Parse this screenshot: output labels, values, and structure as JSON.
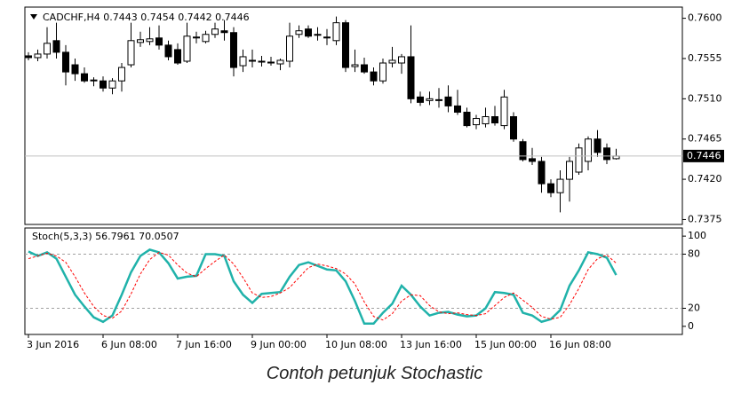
{
  "chart_data": [
    {
      "type": "candlestick",
      "title": "CADCHF,H4  0.7443 0.7454 0.7442 0.7446",
      "categories": [
        "3 Jun 2016",
        null,
        null,
        null,
        null,
        null,
        null,
        null,
        "6 Jun 08:00",
        null,
        null,
        null,
        null,
        null,
        null,
        null,
        "7 Jun 16:00",
        null,
        null,
        null,
        null,
        null,
        null,
        null,
        "9 Jun 00:00",
        null,
        null,
        null,
        null,
        null,
        null,
        null,
        "10 Jun 08:00",
        null,
        null,
        null,
        null,
        null,
        null,
        null,
        "13 Jun 16:00",
        null,
        null,
        null,
        null,
        null,
        null,
        null,
        "15 Jun 00:00",
        null,
        null,
        null,
        null,
        null,
        null,
        null,
        "16 Jun 08:00",
        null,
        null,
        null,
        null,
        null,
        null,
        null
      ],
      "open": [
        0.7558,
        0.7556,
        0.756,
        0.7575,
        0.7562,
        0.7548,
        0.7538,
        0.753,
        0.753,
        0.7522,
        0.753,
        0.7548,
        0.7573,
        0.7574,
        0.7578,
        0.757,
        0.7565,
        0.7552,
        0.7578,
        0.7574,
        0.7582,
        0.7586,
        0.7584,
        0.7547,
        0.7553,
        0.7552,
        0.7551,
        0.7549,
        0.7552,
        0.7582,
        0.7588,
        0.7582,
        0.7579,
        0.7575,
        0.7595,
        0.7546,
        0.7548,
        0.754,
        0.753,
        0.755,
        0.755,
        0.7557,
        0.7512,
        0.7508,
        0.7509,
        0.7512,
        0.7502,
        0.7495,
        0.7481,
        0.7482,
        0.749,
        0.748,
        0.749,
        0.7462,
        0.7443,
        0.744,
        0.7415,
        0.7405,
        0.742,
        0.7428,
        0.744,
        0.7465,
        0.7455,
        0.7443
      ],
      "high": [
        0.7562,
        0.7565,
        0.759,
        0.7595,
        0.757,
        0.7555,
        0.7545,
        0.7534,
        0.7535,
        0.7533,
        0.755,
        0.7595,
        0.7585,
        0.759,
        0.7592,
        0.7575,
        0.7572,
        0.7595,
        0.7585,
        0.7586,
        0.7595,
        0.7598,
        0.759,
        0.7565,
        0.7565,
        0.7558,
        0.7557,
        0.7555,
        0.7595,
        0.7592,
        0.7592,
        0.759,
        0.7588,
        0.7602,
        0.7598,
        0.7565,
        0.7556,
        0.7545,
        0.7555,
        0.7568,
        0.756,
        0.7592,
        0.7518,
        0.7518,
        0.7522,
        0.7525,
        0.752,
        0.75,
        0.7492,
        0.75,
        0.7502,
        0.752,
        0.7495,
        0.7465,
        0.7455,
        0.7445,
        0.742,
        0.743,
        0.7445,
        0.746,
        0.7468,
        0.7475,
        0.746,
        0.7454
      ],
      "low": [
        0.7553,
        0.7552,
        0.7555,
        0.7555,
        0.7525,
        0.753,
        0.7528,
        0.7524,
        0.7518,
        0.7515,
        0.7518,
        0.7545,
        0.7568,
        0.757,
        0.7565,
        0.7553,
        0.7548,
        0.755,
        0.7572,
        0.7572,
        0.7578,
        0.7575,
        0.7535,
        0.754,
        0.7545,
        0.7546,
        0.7547,
        0.7542,
        0.7545,
        0.7578,
        0.7578,
        0.7575,
        0.757,
        0.757,
        0.754,
        0.754,
        0.7538,
        0.7525,
        0.7527,
        0.7545,
        0.7538,
        0.7505,
        0.7502,
        0.7503,
        0.75,
        0.7495,
        0.7492,
        0.7478,
        0.7476,
        0.7478,
        0.748,
        0.7476,
        0.7462,
        0.744,
        0.7436,
        0.7405,
        0.74,
        0.7383,
        0.7395,
        0.7425,
        0.743,
        0.7445,
        0.7437,
        0.7442
      ],
      "close": [
        0.7556,
        0.756,
        0.7572,
        0.7562,
        0.754,
        0.7538,
        0.753,
        0.7531,
        0.7522,
        0.753,
        0.7545,
        0.7575,
        0.7576,
        0.7577,
        0.757,
        0.7557,
        0.755,
        0.758,
        0.7579,
        0.7582,
        0.7588,
        0.7584,
        0.7545,
        0.7557,
        0.7552,
        0.7551,
        0.755,
        0.7553,
        0.758,
        0.7586,
        0.758,
        0.7581,
        0.7578,
        0.7595,
        0.7545,
        0.7548,
        0.754,
        0.753,
        0.755,
        0.7553,
        0.7557,
        0.751,
        0.7506,
        0.751,
        0.7508,
        0.7502,
        0.7495,
        0.748,
        0.7488,
        0.749,
        0.7483,
        0.7512,
        0.7465,
        0.7442,
        0.744,
        0.7415,
        0.7405,
        0.742,
        0.744,
        0.7455,
        0.7465,
        0.745,
        0.7442,
        0.7446
      ],
      "up_color": "#ffffff",
      "down_color": "#000000",
      "current_price": 0.7446,
      "ylim": [
        0.73695,
        0.76125
      ],
      "yticks": [
        {
          "value": 0.76,
          "label": "0.7600"
        },
        0.7555,
        {
          "value": 0.751,
          "label": "0.7510"
        },
        0.7465,
        {
          "value": 0.742,
          "label": "0.7420"
        },
        0.7375
      ]
    },
    {
      "type": "line",
      "title": "Stoch(5,3,3) 56.7961 70.0507",
      "series": [
        {
          "color": "#20b2aa",
          "dash": false,
          "values": [
            83,
            78,
            82,
            75,
            55,
            35,
            22,
            10,
            5,
            12,
            35,
            60,
            78,
            85,
            82,
            70,
            53,
            55,
            56,
            80,
            80,
            78,
            50,
            35,
            26,
            36,
            37,
            38,
            55,
            68,
            71,
            67,
            63,
            62,
            50,
            28,
            3,
            3,
            15,
            25,
            45,
            35,
            22,
            12,
            15,
            16,
            13,
            11,
            12,
            20,
            38,
            37,
            35,
            15,
            12,
            5,
            8,
            18,
            45,
            62,
            82,
            80,
            76,
            56.7961
          ]
        },
        {
          "color": "#ff0000",
          "dash": true,
          "values": [
            75,
            78,
            81,
            78,
            71,
            55,
            37,
            22,
            12,
            9,
            17,
            36,
            58,
            74,
            82,
            79,
            68,
            59,
            55,
            64,
            72,
            79,
            69,
            54,
            37,
            32,
            33,
            37,
            43,
            54,
            65,
            69,
            67,
            64,
            58,
            47,
            27,
            11,
            7,
            14,
            28,
            35,
            34,
            23,
            16,
            14,
            15,
            13,
            12,
            14,
            23,
            32,
            37,
            29,
            21,
            11,
            8,
            10,
            24,
            42,
            63,
            75,
            79,
            70.0507
          ]
        }
      ],
      "levels": [
        20,
        80
      ],
      "ylim": [
        -9,
        109
      ],
      "yticks": [
        100,
        80,
        20,
        0
      ]
    }
  ],
  "caption": "Contoh petunjuk Stochastic"
}
